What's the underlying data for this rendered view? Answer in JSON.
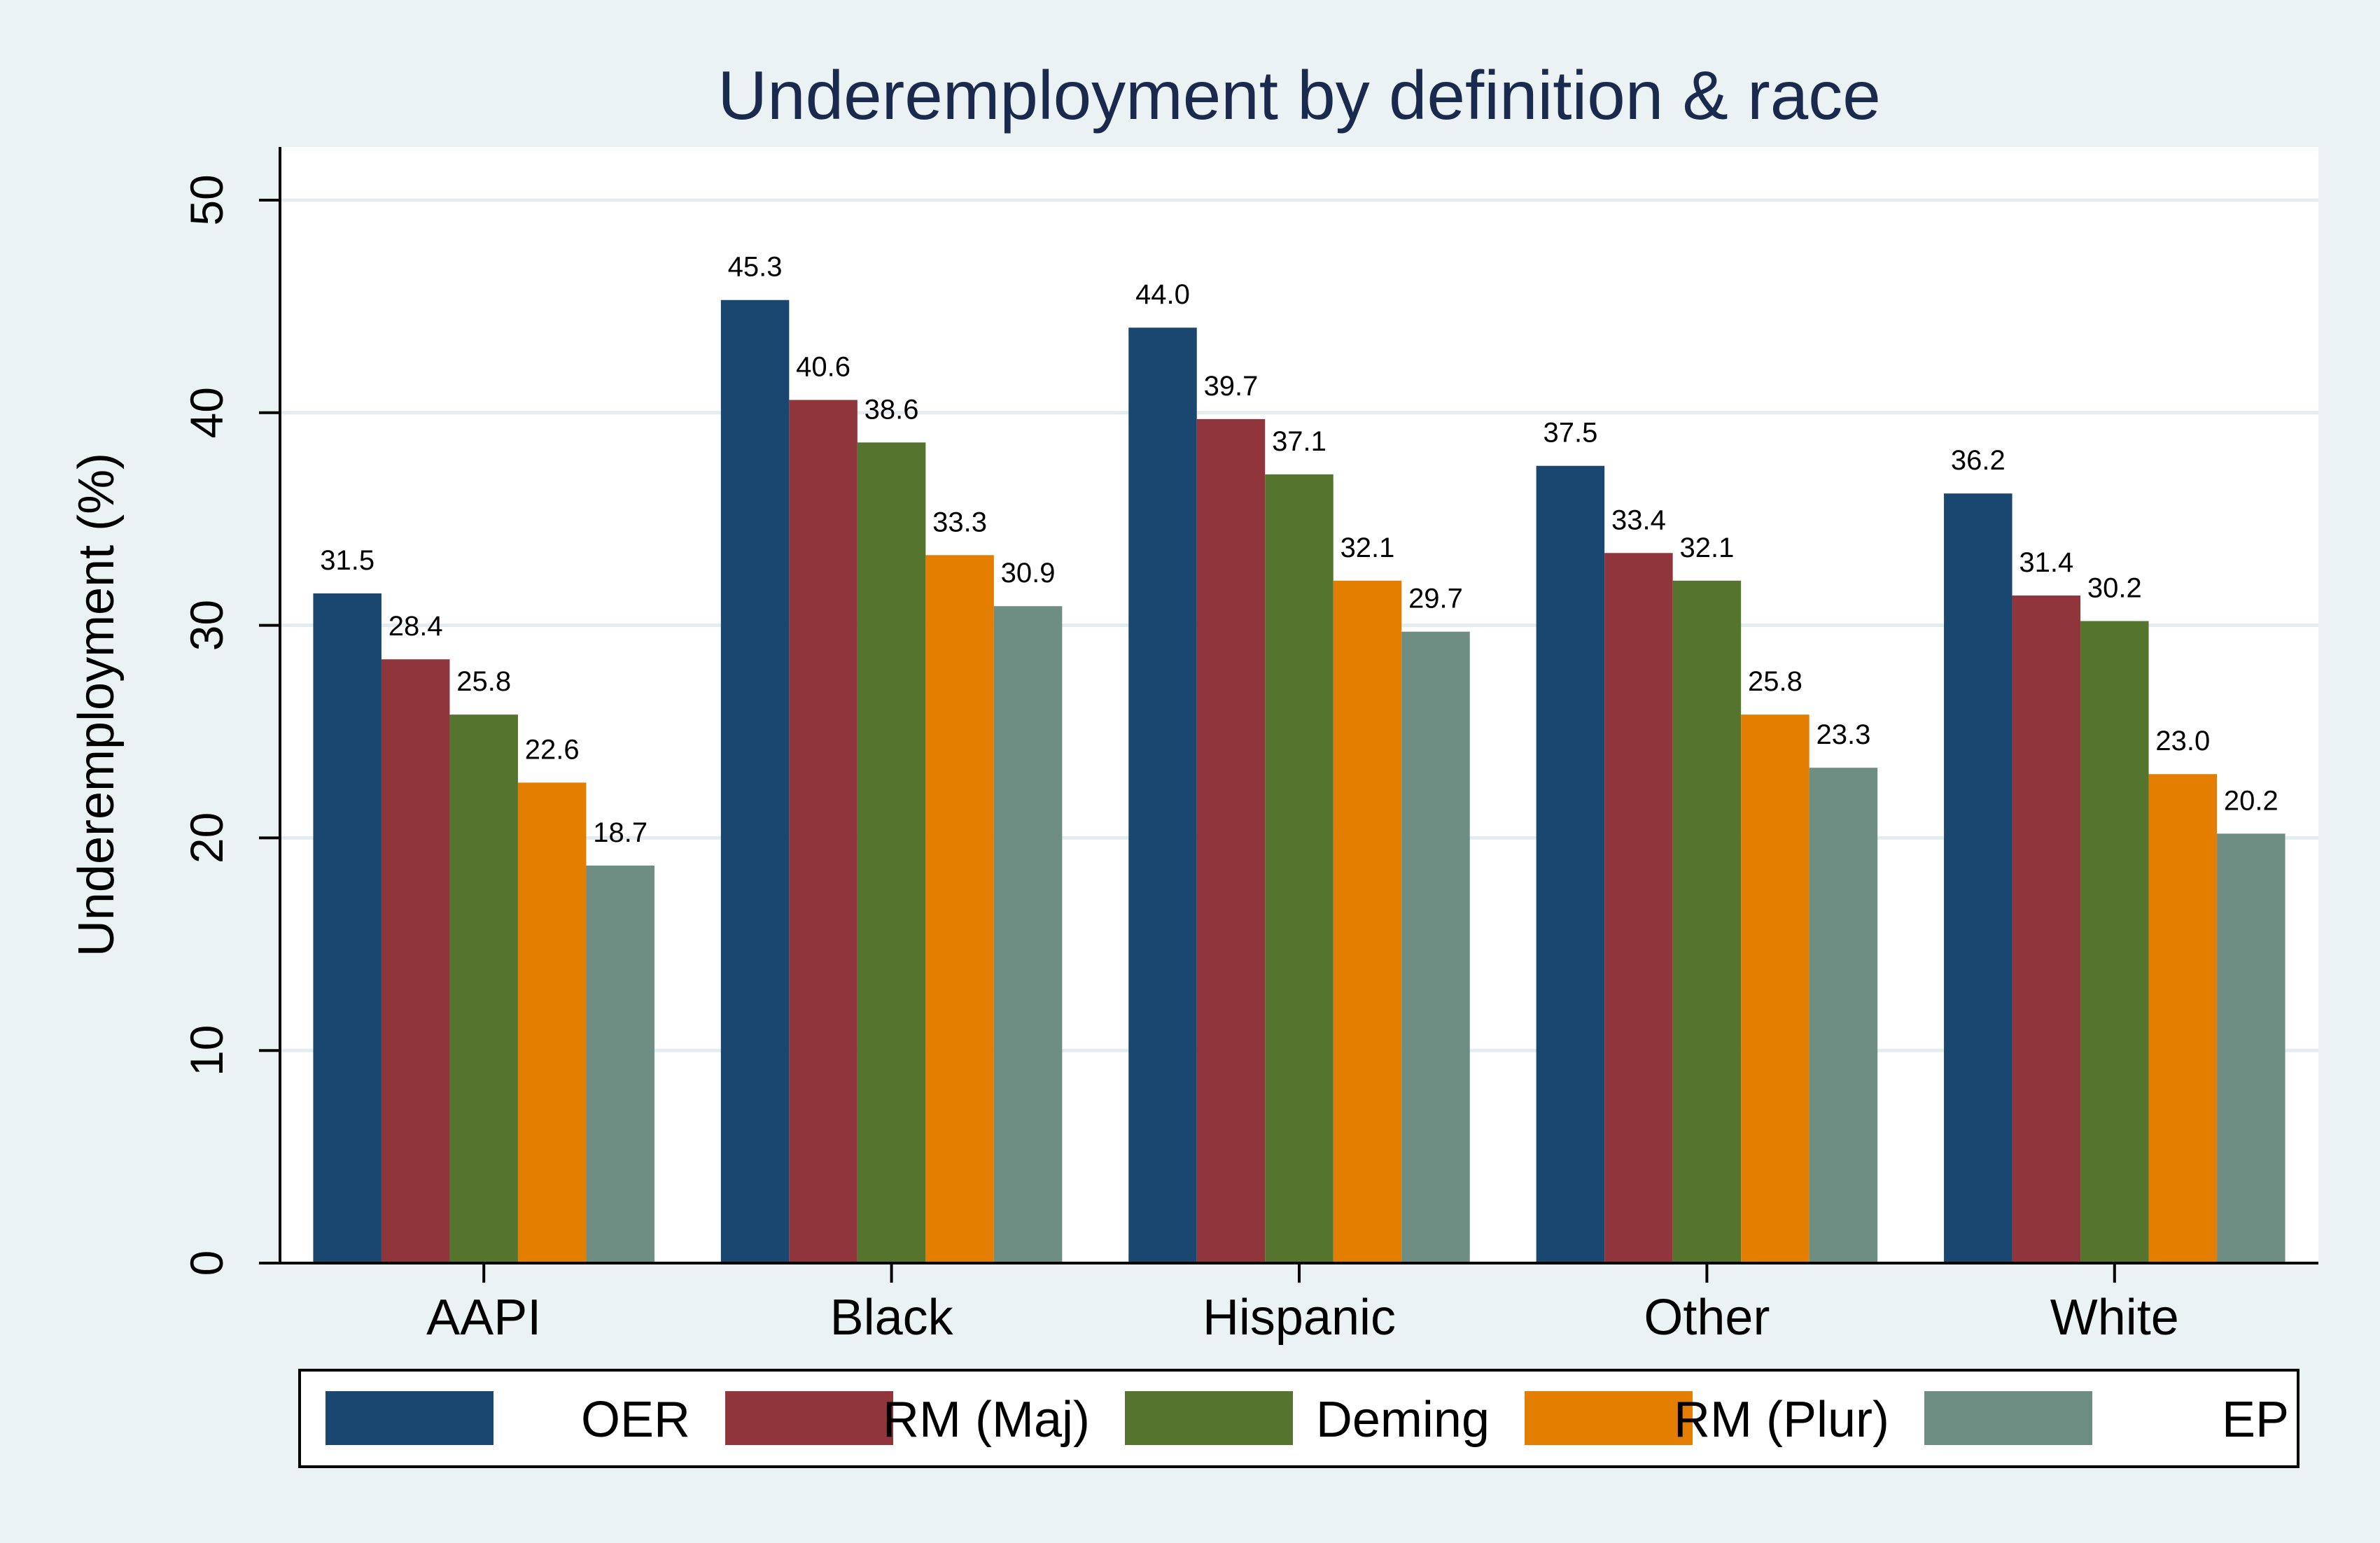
{
  "chart_data": {
    "type": "bar",
    "title": "Underemployment by definition & race",
    "ylabel": "Underemployment (%)",
    "xlabel": "",
    "ylim": [
      0,
      52.5
    ],
    "yticks": [
      0,
      10,
      20,
      30,
      40,
      50
    ],
    "grid": true,
    "legend_position": "bottom",
    "categories": [
      "AAPI",
      "Black",
      "Hispanic",
      "Other",
      "White"
    ],
    "series": [
      {
        "name": "OER",
        "color": "#1a476f",
        "values": [
          31.5,
          45.3,
          44.0,
          37.5,
          36.2
        ],
        "labels": [
          "31.5",
          "45.3",
          "44.0",
          "37.5",
          "36.2"
        ]
      },
      {
        "name": "RM (Maj)",
        "color": "#90353b",
        "values": [
          28.4,
          40.6,
          39.7,
          33.4,
          31.4
        ],
        "labels": [
          "28.4",
          "40.6",
          "39.7",
          "33.4",
          "31.4"
        ]
      },
      {
        "name": "Deming",
        "color": "#55752f",
        "values": [
          25.8,
          38.6,
          37.1,
          32.1,
          30.2
        ],
        "labels": [
          "25.8",
          "38.6",
          "37.1",
          "32.1",
          "30.2"
        ]
      },
      {
        "name": "RM (Plur)",
        "color": "#e37e00",
        "values": [
          22.6,
          33.3,
          32.1,
          25.8,
          23.0
        ],
        "labels": [
          "22.6",
          "33.3",
          "32.1",
          "25.8",
          "23.0"
        ]
      },
      {
        "name": "EP",
        "color": "#6e8e84",
        "values": [
          18.7,
          30.9,
          29.7,
          23.3,
          20.2
        ],
        "labels": [
          "18.7",
          "30.9",
          "29.7",
          "23.3",
          "20.2"
        ]
      }
    ]
  }
}
